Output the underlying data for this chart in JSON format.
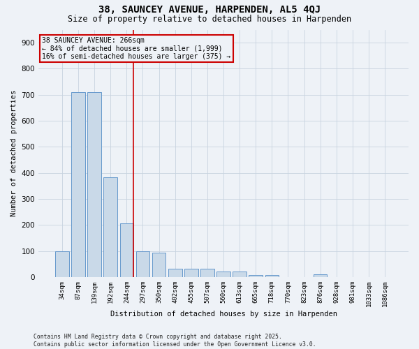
{
  "title1": "38, SAUNCEY AVENUE, HARPENDEN, AL5 4QJ",
  "title2": "Size of property relative to detached houses in Harpenden",
  "xlabel": "Distribution of detached houses by size in Harpenden",
  "ylabel": "Number of detached properties",
  "categories": [
    "34sqm",
    "87sqm",
    "139sqm",
    "192sqm",
    "244sqm",
    "297sqm",
    "350sqm",
    "402sqm",
    "455sqm",
    "507sqm",
    "560sqm",
    "613sqm",
    "665sqm",
    "718sqm",
    "770sqm",
    "823sqm",
    "876sqm",
    "928sqm",
    "981sqm",
    "1033sqm",
    "1086sqm"
  ],
  "values": [
    100,
    711,
    711,
    383,
    205,
    100,
    95,
    32,
    33,
    33,
    20,
    20,
    8,
    8,
    0,
    0,
    10,
    0,
    0,
    0,
    0
  ],
  "bar_color": "#c9d9e8",
  "bar_edge_color": "#6699cc",
  "annotation_line1": "38 SAUNCEY AVENUE: 266sqm",
  "annotation_line2": "← 84% of detached houses are smaller (1,999)",
  "annotation_line3": "16% of semi-detached houses are larger (375) →",
  "vline_color": "#cc0000",
  "box_color": "#cc0000",
  "footer": "Contains HM Land Registry data © Crown copyright and database right 2025.\nContains public sector information licensed under the Open Government Licence v3.0.",
  "bg_color": "#eef2f7",
  "grid_color": "#c8d4e0",
  "ylim": [
    0,
    950
  ],
  "yticks": [
    0,
    100,
    200,
    300,
    400,
    500,
    600,
    700,
    800,
    900
  ]
}
